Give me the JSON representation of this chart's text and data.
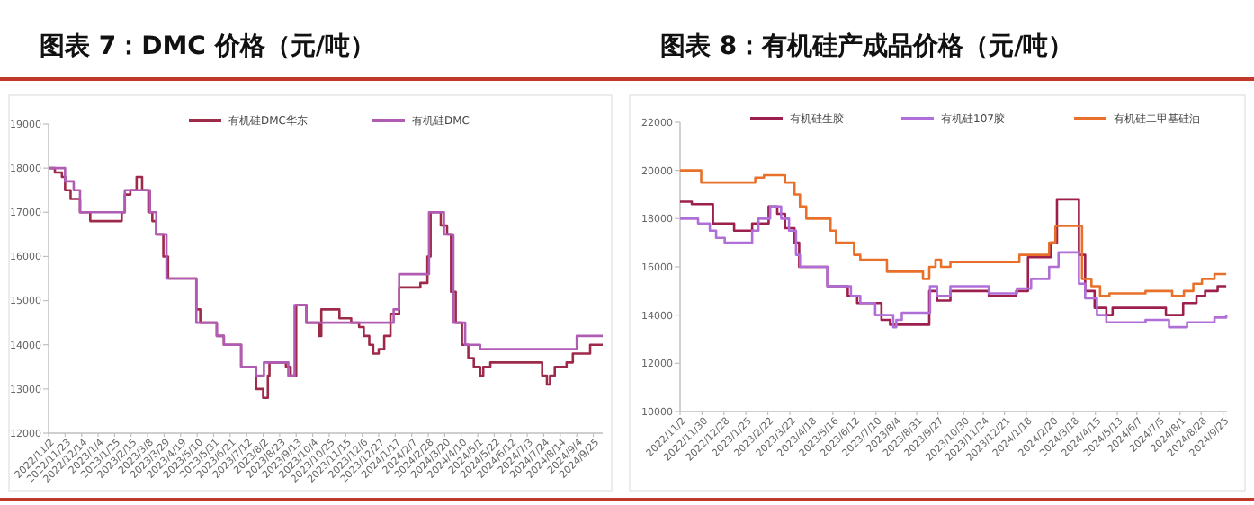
{
  "chart_data": [
    {
      "type": "step",
      "title": "图表 7：DMC 价格（元/吨）",
      "legend": "top",
      "xlim": [
        "2022-11-02",
        "2024-10-07"
      ],
      "ylim": [
        12000,
        19000
      ],
      "yticks": [
        12000,
        13000,
        14000,
        15000,
        16000,
        17000,
        18000,
        19000
      ],
      "xticks": [
        {
          "value": "2022-11-02",
          "label": "2022/11/2"
        },
        {
          "value": "2022-11-23",
          "label": "2022/11/23"
        },
        {
          "value": "2022-12-14",
          "label": "2022/12/14"
        },
        {
          "value": "2023-01-04",
          "label": "2023/1/4"
        },
        {
          "value": "2023-01-25",
          "label": "2023/1/25"
        },
        {
          "value": "2023-02-15",
          "label": "2023/2/15"
        },
        {
          "value": "2023-03-08",
          "label": "2023/3/8"
        },
        {
          "value": "2023-03-29",
          "label": "2023/3/29"
        },
        {
          "value": "2023-04-19",
          "label": "2023/4/19"
        },
        {
          "value": "2023-05-10",
          "label": "2023/5/10"
        },
        {
          "value": "2023-05-31",
          "label": "2023/5/31"
        },
        {
          "value": "2023-06-21",
          "label": "2023/6/21"
        },
        {
          "value": "2023-07-12",
          "label": "2023/7/12"
        },
        {
          "value": "2023-08-02",
          "label": "2023/8/2"
        },
        {
          "value": "2023-08-23",
          "label": "2023/8/23"
        },
        {
          "value": "2023-09-13",
          "label": "2023/9/13"
        },
        {
          "value": "2023-10-04",
          "label": "2023/10/4"
        },
        {
          "value": "2023-10-25",
          "label": "2023/10/25"
        },
        {
          "value": "2023-11-15",
          "label": "2023/11/15"
        },
        {
          "value": "2023-12-06",
          "label": "2023/12/6"
        },
        {
          "value": "2023-12-27",
          "label": "2023/12/27"
        },
        {
          "value": "2024-01-17",
          "label": "2024/1/17"
        },
        {
          "value": "2024-02-07",
          "label": "2024/2/7"
        },
        {
          "value": "2024-02-28",
          "label": "2024/2/28"
        },
        {
          "value": "2024-03-20",
          "label": "2024/3/20"
        },
        {
          "value": "2024-04-10",
          "label": "2024/4/10"
        },
        {
          "value": "2024-05-01",
          "label": "2024/5/1"
        },
        {
          "value": "2024-05-22",
          "label": "2024/5/22"
        },
        {
          "value": "2024-06-12",
          "label": "2024/6/12"
        },
        {
          "value": "2024-07-03",
          "label": "2024/7/3"
        },
        {
          "value": "2024-07-24",
          "label": "2024/7/24"
        },
        {
          "value": "2024-08-14",
          "label": "2024/8/14"
        },
        {
          "value": "2024-09-04",
          "label": "2024/9/4"
        },
        {
          "value": "2024-09-25",
          "label": "2024/9/25"
        }
      ],
      "series": [
        {
          "name": "有机硅DMC华东",
          "color": "#9e2a4a",
          "x": [
            "2022-11-02",
            "2022-11-10",
            "2022-11-19",
            "2022-11-23",
            "2022-11-30",
            "2022-12-12",
            "2022-12-25",
            "2023-02-03",
            "2023-02-07",
            "2023-02-14",
            "2023-02-22",
            "2023-03-01",
            "2023-03-09",
            "2023-03-14",
            "2023-03-19",
            "2023-03-28",
            "2023-04-03",
            "2023-05-09",
            "2023-05-14",
            "2023-06-04",
            "2023-06-13",
            "2023-07-05",
            "2023-07-24",
            "2023-08-02",
            "2023-08-08",
            "2023-08-10",
            "2023-08-31",
            "2023-09-06",
            "2023-09-13",
            "2023-09-26",
            "2023-10-12",
            "2023-10-15",
            "2023-11-07",
            "2023-11-22",
            "2023-12-02",
            "2023-12-08",
            "2023-12-15",
            "2023-12-20",
            "2023-12-27",
            "2024-01-03",
            "2024-01-11",
            "2024-01-22",
            "2024-02-18",
            "2024-02-27",
            "2024-03-02",
            "2024-03-15",
            "2024-03-23",
            "2024-03-28",
            "2024-04-03",
            "2024-04-11",
            "2024-04-19",
            "2024-04-26",
            "2024-05-04",
            "2024-05-08",
            "2024-05-17",
            "2024-07-19",
            "2024-07-22",
            "2024-07-28",
            "2024-08-01",
            "2024-08-07",
            "2024-08-22",
            "2024-08-30",
            "2024-09-21",
            "2024-10-07"
          ],
          "values": [
            18000,
            17900,
            17800,
            17500,
            17300,
            17000,
            16800,
            17000,
            17400,
            17500,
            17800,
            17500,
            17000,
            16800,
            16500,
            16000,
            15500,
            14800,
            14500,
            14200,
            14000,
            13500,
            13000,
            12800,
            13300,
            13600,
            13500,
            13300,
            14900,
            14500,
            14200,
            14800,
            14600,
            14500,
            14400,
            14200,
            14000,
            13800,
            13900,
            14200,
            14700,
            15300,
            15400,
            16000,
            17000,
            16700,
            16500,
            15200,
            14500,
            14000,
            13700,
            13500,
            13300,
            13500,
            13600,
            13600,
            13300,
            13100,
            13300,
            13500,
            13600,
            13800,
            14000,
            14000
          ]
        },
        {
          "name": "有机硅DMC",
          "color": "#b05cb5",
          "x": [
            "2022-11-02",
            "2022-11-23",
            "2022-12-04",
            "2022-12-12",
            "2023-02-03",
            "2023-02-07",
            "2023-03-01",
            "2023-03-11",
            "2023-03-19",
            "2023-04-01",
            "2023-05-09",
            "2023-06-04",
            "2023-06-13",
            "2023-07-05",
            "2023-07-24",
            "2023-08-03",
            "2023-08-26",
            "2023-09-03",
            "2023-09-11",
            "2023-09-26",
            "2024-01-07",
            "2024-01-15",
            "2024-01-22",
            "2024-02-22",
            "2024-02-29",
            "2024-03-19",
            "2024-03-31",
            "2024-04-15",
            "2024-05-04",
            "2024-09-04",
            "2024-10-07"
          ],
          "values": [
            18000,
            17700,
            17500,
            17000,
            17000,
            17500,
            17500,
            17000,
            16500,
            15500,
            14500,
            14200,
            14000,
            13500,
            13300,
            13600,
            13600,
            13300,
            14900,
            14500,
            14500,
            14800,
            15600,
            15600,
            17000,
            16500,
            14500,
            14000,
            13900,
            14200,
            14200
          ]
        }
      ]
    },
    {
      "type": "step",
      "title": "图表 8：有机硅产成品价格（元/吨）",
      "legend": "top",
      "xlim": [
        "2022-11-02",
        "2024-09-30"
      ],
      "ylim": [
        10000,
        22000
      ],
      "yticks": [
        10000,
        12000,
        14000,
        16000,
        18000,
        20000,
        22000
      ],
      "xticks": [
        {
          "value": "2022-11-02",
          "label": "2022/11/2"
        },
        {
          "value": "2022-11-30",
          "label": "2022/11/30"
        },
        {
          "value": "2022-12-28",
          "label": "2022/12/28"
        },
        {
          "value": "2023-01-25",
          "label": "2023/1/25"
        },
        {
          "value": "2023-02-22",
          "label": "2023/2/22"
        },
        {
          "value": "2023-03-22",
          "label": "2023/3/22"
        },
        {
          "value": "2023-04-18",
          "label": "2023/4/18"
        },
        {
          "value": "2023-05-16",
          "label": "2023/5/16"
        },
        {
          "value": "2023-06-12",
          "label": "2023/6/12"
        },
        {
          "value": "2023-07-10",
          "label": "2023/7/10"
        },
        {
          "value": "2023-08-04",
          "label": "2023/8/4"
        },
        {
          "value": "2023-08-31",
          "label": "2023/8/31"
        },
        {
          "value": "2023-09-27",
          "label": "2023/9/27"
        },
        {
          "value": "2023-10-30",
          "label": "2023/10/30"
        },
        {
          "value": "2023-11-24",
          "label": "2023/11/24"
        },
        {
          "value": "2023-12-21",
          "label": "2023/12/21"
        },
        {
          "value": "2024-01-18",
          "label": "2024/1/18"
        },
        {
          "value": "2024-02-20",
          "label": "2024/2/20"
        },
        {
          "value": "2024-03-18",
          "label": "2024/3/18"
        },
        {
          "value": "2024-04-15",
          "label": "2024/4/15"
        },
        {
          "value": "2024-05-13",
          "label": "2024/5/13"
        },
        {
          "value": "2024-06-07",
          "label": "2024/6/7"
        },
        {
          "value": "2024-07-05",
          "label": "2024/7/5"
        },
        {
          "value": "2024-08-01",
          "label": "2024/8/1"
        },
        {
          "value": "2024-08-28",
          "label": "2024/8/28"
        },
        {
          "value": "2024-09-25",
          "label": "2024/9/25"
        }
      ],
      "series": [
        {
          "name": "有机硅生胶",
          "color": "#9c1f4e",
          "x": [
            "2022-11-02",
            "2022-11-17",
            "2022-12-14",
            "2023-01-10",
            "2023-02-02",
            "2023-02-23",
            "2023-03-06",
            "2023-03-16",
            "2023-03-28",
            "2023-04-03",
            "2023-05-09",
            "2023-06-04",
            "2023-06-16",
            "2023-07-17",
            "2023-07-28",
            "2023-09-16",
            "2023-09-26",
            "2023-10-13",
            "2023-12-01",
            "2024-01-05",
            "2024-01-20",
            "2024-02-18",
            "2024-02-26",
            "2024-03-25",
            "2024-04-02",
            "2024-04-14",
            "2024-04-29",
            "2024-05-07",
            "2024-07-14",
            "2024-08-05",
            "2024-08-22",
            "2024-09-02",
            "2024-09-18",
            "2024-09-29"
          ],
          "values": [
            18700,
            18600,
            17800,
            17500,
            17800,
            18500,
            18200,
            17600,
            17000,
            16000,
            15200,
            14800,
            14500,
            13800,
            13600,
            15000,
            14600,
            15000,
            14800,
            15000,
            16400,
            17000,
            18800,
            16500,
            15000,
            14300,
            14000,
            14300,
            14000,
            14500,
            14800,
            15000,
            15200,
            15200
          ]
        },
        {
          "name": "有机硅107胶",
          "color": "#b06fd8",
          "x": [
            "2022-11-02",
            "2022-11-25",
            "2022-12-10",
            "2022-12-18",
            "2022-12-29",
            "2023-02-02",
            "2023-02-10",
            "2023-02-25",
            "2023-03-11",
            "2023-03-21",
            "2023-03-30",
            "2023-04-04",
            "2023-05-09",
            "2023-06-08",
            "2023-06-20",
            "2023-07-09",
            "2023-08-01",
            "2023-08-05",
            "2023-08-12",
            "2023-09-17",
            "2023-09-26",
            "2023-10-13",
            "2023-12-01",
            "2024-01-06",
            "2024-01-24",
            "2024-02-16",
            "2024-02-28",
            "2024-03-25",
            "2024-04-02",
            "2024-04-17",
            "2024-04-29",
            "2024-06-18",
            "2024-07-18",
            "2024-08-10",
            "2024-09-14",
            "2024-09-29"
          ],
          "values": [
            18000,
            17800,
            17500,
            17200,
            17000,
            17500,
            18000,
            18500,
            18000,
            17500,
            16500,
            16000,
            15200,
            14800,
            14500,
            14000,
            13500,
            13800,
            14100,
            15200,
            14800,
            15200,
            14900,
            15100,
            15500,
            16000,
            16600,
            15300,
            14700,
            14000,
            13700,
            13800,
            13500,
            13700,
            13900,
            14000
          ]
        },
        {
          "name": "有机硅二甲基硅油",
          "color": "#e8702a",
          "x": [
            "2022-11-02",
            "2022-11-29",
            "2023-02-06",
            "2023-02-17",
            "2023-03-16",
            "2023-03-28",
            "2023-04-04",
            "2023-04-12",
            "2023-05-13",
            "2023-05-20",
            "2023-06-12",
            "2023-06-20",
            "2023-07-24",
            "2023-09-08",
            "2023-09-16",
            "2023-09-24",
            "2023-10-01",
            "2023-10-13",
            "2024-01-09",
            "2024-02-16",
            "2024-02-24",
            "2024-03-29",
            "2024-04-10",
            "2024-04-21",
            "2024-05-03",
            "2024-06-18",
            "2024-07-22",
            "2024-08-06",
            "2024-08-18",
            "2024-08-29",
            "2024-09-14",
            "2024-09-29"
          ],
          "values": [
            20000,
            19500,
            19700,
            19800,
            19500,
            19000,
            18500,
            18000,
            17500,
            17000,
            16500,
            16300,
            15800,
            15500,
            16000,
            16300,
            16000,
            16200,
            16500,
            17000,
            17700,
            15500,
            15200,
            14800,
            14900,
            15000,
            14800,
            15000,
            15300,
            15500,
            15700,
            15700
          ]
        }
      ]
    }
  ]
}
